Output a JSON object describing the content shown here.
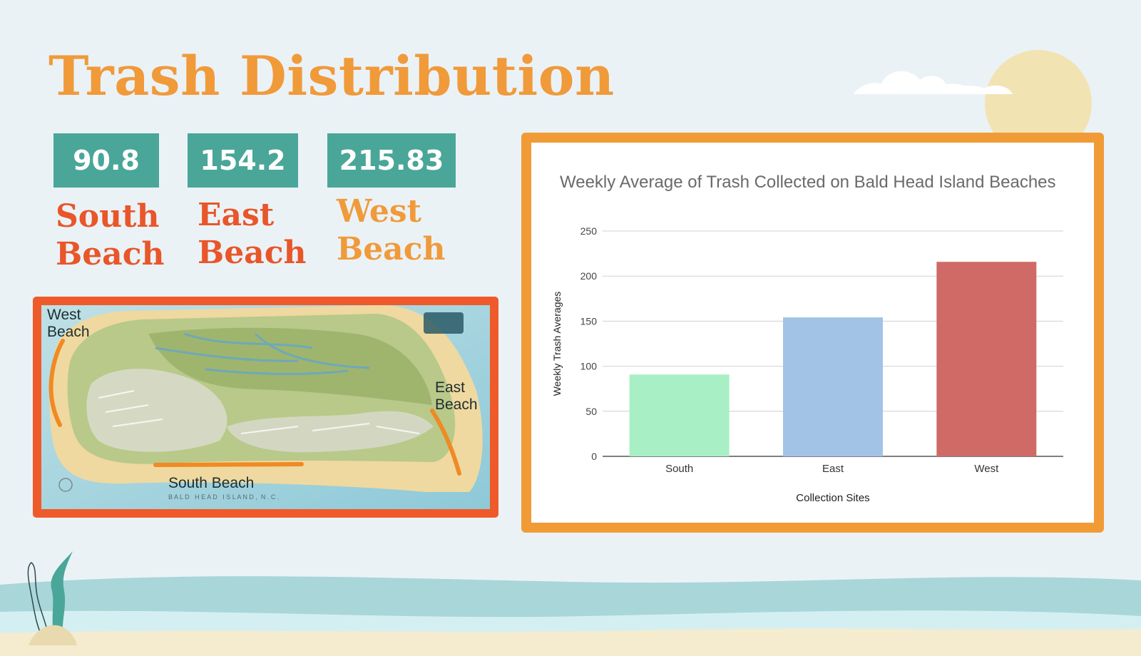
{
  "title": "Trash Distribution",
  "stats": [
    {
      "value": "90.8",
      "label_line1": "South",
      "label_line2": "Beach"
    },
    {
      "value": "154.2",
      "label_line1": "East",
      "label_line2": "Beach"
    },
    {
      "value": "215.83",
      "label_line1": "West",
      "label_line2": "Beach"
    }
  ],
  "colors": {
    "title": "#f09a3a",
    "stat_box": "#4aa698",
    "south_label": "#e8562a",
    "east_label": "#e8562a",
    "west_label": "#f09a3a",
    "map_frame": "#ef5a2b",
    "chart_frame": "#f19b36",
    "beach_highlight": "#f08a24"
  },
  "map": {
    "west_label": "West\nBeach",
    "east_label": "East\nBeach",
    "south_label": "South Beach",
    "footer_text": "B A L D   H E A D   I S L A N D ,  N . C ."
  },
  "decor": {
    "icons": [
      "sun-icon",
      "cloud-icon",
      "seaweed-icon",
      "wave-icon"
    ]
  },
  "chart_data": {
    "type": "bar",
    "title": "Weekly Average of Trash Collected on Bald Head Island Beaches",
    "xlabel": "Collection Sites",
    "ylabel": "Weekly Trash Averages",
    "categories": [
      "South",
      "East",
      "West"
    ],
    "values": [
      90.8,
      154.2,
      215.83
    ],
    "bar_colors": [
      "#a8efc5",
      "#a3c3e6",
      "#d06a67"
    ],
    "ylim": [
      0,
      250
    ],
    "yticks": [
      0,
      50,
      100,
      150,
      200,
      250
    ],
    "grid": true,
    "legend": "none"
  }
}
